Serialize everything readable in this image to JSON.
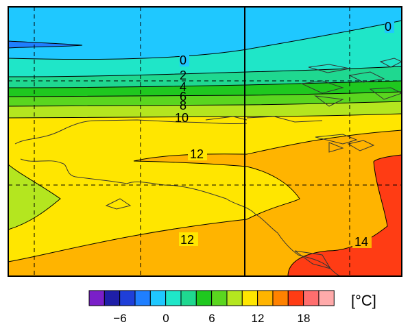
{
  "map": {
    "contour_labels": [
      {
        "text": "0"
      },
      {
        "text": "0"
      },
      {
        "text": "2"
      },
      {
        "text": "4"
      },
      {
        "text": "6"
      },
      {
        "text": "8"
      },
      {
        "text": "10"
      },
      {
        "text": "12"
      },
      {
        "text": "12"
      },
      {
        "text": "14"
      }
    ]
  },
  "colorbar": {
    "colors": [
      "#7a1fc8",
      "#1f1fa8",
      "#1f3fd8",
      "#1f7fff",
      "#1fc8ff",
      "#1fe6c8",
      "#1fd890",
      "#1fc81f",
      "#5ad61f",
      "#b4e61f",
      "#ffe600",
      "#ffb400",
      "#ff8200",
      "#ff3c14",
      "#ff6e6e",
      "#ffaaaa"
    ],
    "tick_labels": [
      "−6",
      "0",
      "6",
      "12",
      "18"
    ],
    "unit": "[°C]"
  }
}
